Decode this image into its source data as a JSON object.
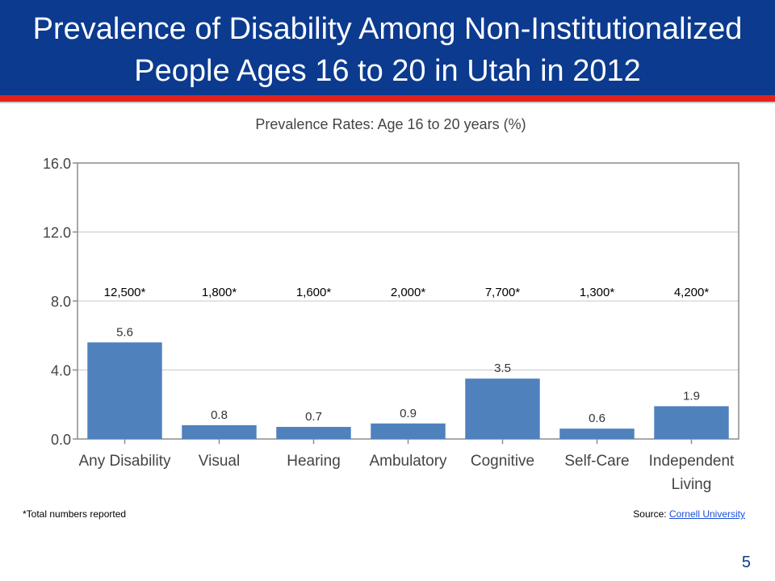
{
  "slide": {
    "title_line1": "Prevalence of Disability Among Non-Institutionalized",
    "title_line2": "People Ages 16 to 20 in Utah in 2012",
    "footnote": "*Total numbers reported",
    "source_label": "Source:",
    "source_link": "Cornell University",
    "page_number": "5",
    "colors": {
      "title_band": "#0b3a8f",
      "accent_stripe": "#e2231a",
      "bar": "#4f81bd"
    }
  },
  "chart_data": {
    "type": "bar",
    "title": "Prevalence Rates: Age 16 to 20 years (%)",
    "categories": [
      "Any Disability",
      "Visual",
      "Hearing",
      "Ambulatory",
      "Cognitive",
      "Self-Care",
      "Independent Living"
    ],
    "values": [
      5.6,
      0.8,
      0.7,
      0.9,
      3.5,
      0.6,
      1.9
    ],
    "value_labels": [
      "5.6",
      "0.8",
      "0.7",
      "0.9",
      "3.5",
      "0.6",
      "1.9"
    ],
    "totals": [
      "12,500*",
      "1,800*",
      "1,600*",
      "2,000*",
      "7,700*",
      "1,300*",
      "4,200*"
    ],
    "ylim": [
      0,
      16
    ],
    "yticks": [
      "0.0",
      "4.0",
      "8.0",
      "12.0",
      "16.0"
    ],
    "grid": true,
    "xlabel": "",
    "ylabel": ""
  }
}
